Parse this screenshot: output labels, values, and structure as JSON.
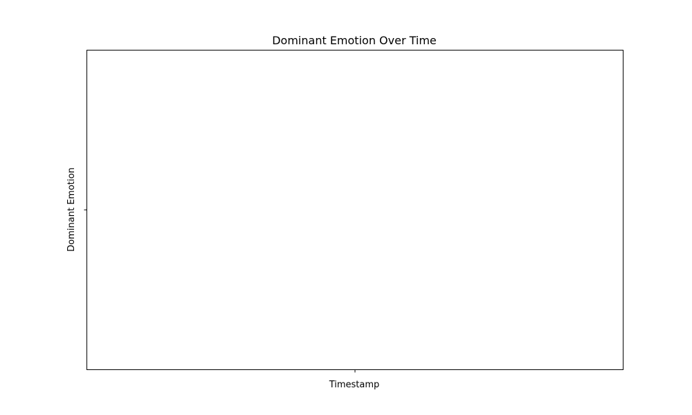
{
  "chart_data": {
    "type": "line",
    "title": "Dominant Emotion Over Time",
    "xlabel": "Timestamp",
    "ylabel": "Dominant Emotion",
    "x": [],
    "series": [
      {
        "values": []
      }
    ],
    "x_ticks": [
      ""
    ],
    "y_ticks": [
      ""
    ],
    "grid": false,
    "legend": "none"
  },
  "colors": {
    "background": "#ffffff",
    "axes": "#000000"
  }
}
